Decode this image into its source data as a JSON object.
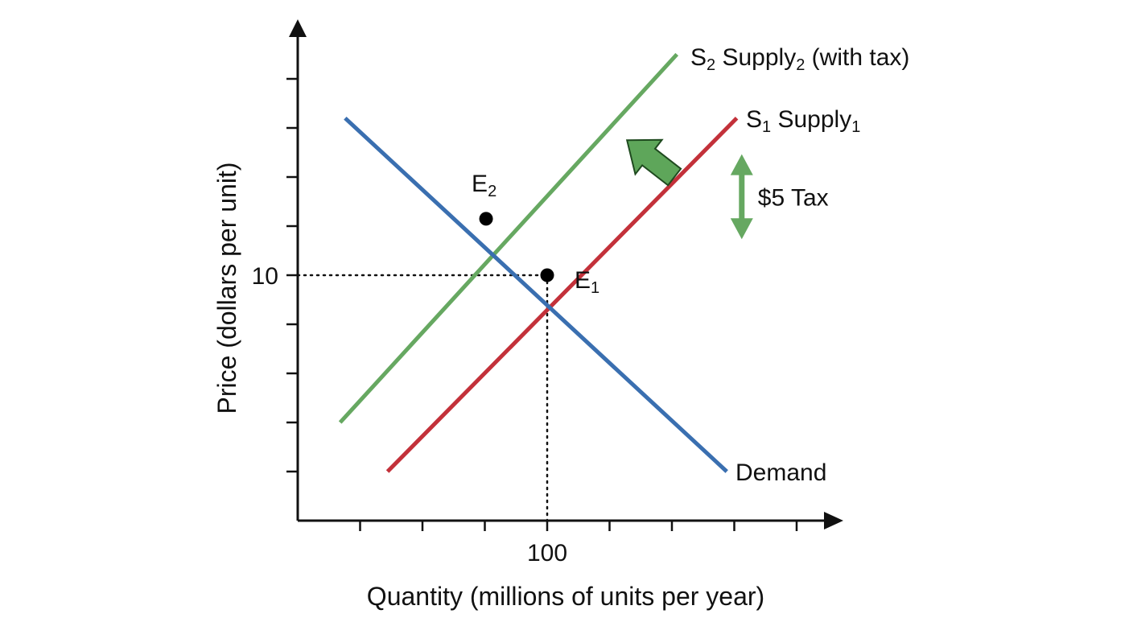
{
  "chart_data": {
    "type": "line",
    "title": "",
    "xlabel": "Quantity (millions of units per year)",
    "ylabel": "Price (dollars per unit)",
    "x_ticks": [
      {
        "value": 100,
        "label": "100"
      }
    ],
    "y_ticks": [
      {
        "value": 10,
        "label": "10"
      }
    ],
    "xlim": [
      0,
      217
    ],
    "ylim": [
      0,
      21
    ],
    "series": [
      {
        "key": "supply2",
        "label_symbol": "S",
        "label_symbol_sub": "2",
        "label_text": "Supply",
        "label_text_sub": "2",
        "label_suffix": " (with tax)",
        "color": "#66a861",
        "x": [
          17,
          152
        ],
        "y": [
          4,
          19
        ]
      },
      {
        "key": "supply1",
        "label_symbol": "S",
        "label_symbol_sub": "1",
        "label_text": "Supply",
        "label_text_sub": "1",
        "label_suffix": "",
        "color": "#c3313a",
        "x": [
          36,
          176
        ],
        "y": [
          2,
          16.4
        ]
      },
      {
        "key": "demand",
        "label_symbol": "",
        "label_symbol_sub": "",
        "label_text": "Demand",
        "label_text_sub": "",
        "label_suffix": "",
        "color": "#3a6fb0",
        "x": [
          19,
          172
        ],
        "y": [
          16.4,
          2
        ]
      }
    ],
    "points": [
      {
        "key": "E1",
        "letter": "E",
        "sub": "1",
        "x": 100,
        "y": 10
      },
      {
        "key": "E2",
        "letter": "E",
        "sub": "2",
        "x": 75.5,
        "y": 12.3
      }
    ],
    "annotation": {
      "text": "$5 Tax",
      "color": "#66a861",
      "x": 178,
      "y_top": 14.8,
      "y_bottom": 11.6
    },
    "shift_arrow": {
      "color": "#5ea65a",
      "from": {
        "x": 151,
        "y": 14.0
      },
      "to": {
        "x": 132,
        "y": 15.5
      }
    },
    "grid": false,
    "legend": "none"
  }
}
